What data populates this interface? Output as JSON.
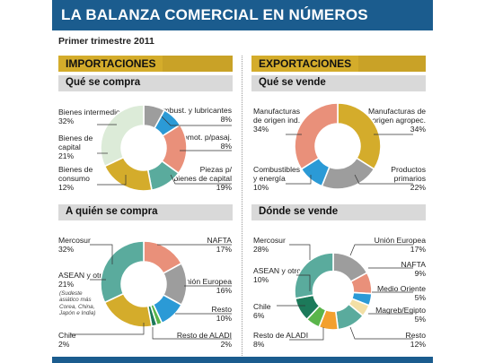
{
  "title": "LA BALANZA COMERCIAL EN NÚMEROS",
  "subtitle": "Primer trimestre 2011",
  "sections": {
    "importaciones": "IMPORTACIONES",
    "exportaciones": "EXPORTACIONES"
  },
  "panels": {
    "p1": "Qué se compra",
    "p2": "Qué se vende",
    "p3": "A quién se compra",
    "p4": "Dónde se vende"
  },
  "colors": {
    "header_blue": "#1b5c8e",
    "gold": "#d4ac2b",
    "grey_bar": "#d9d9d9"
  },
  "labels": {
    "p1": {
      "bienes_intermedios": "Bienes intermedios",
      "bienes_intermedios_v": "32%",
      "bienes_capital_1": "Bienes de",
      "bienes_capital_2": "capital",
      "bienes_capital_v": "21%",
      "bienes_consumo_1": "Bienes de",
      "bienes_consumo_2": "consumo",
      "bienes_consumo_v": "12%",
      "combust": "Combust. y lubricantes",
      "combust_v": "8%",
      "automot": "Automot. p/pasaj.",
      "automot_v": "8%",
      "piezas_1": "Piezas p/",
      "piezas_2": "bienes de capital",
      "piezas_v": "19%"
    },
    "p2": {
      "moi_1": "Manufacturas",
      "moi_2": "de origen ind.",
      "moi_v": "34%",
      "moa_1": "Manufacturas de",
      "moa_2": "origen agropec.",
      "moa_v": "34%",
      "comb_1": "Combustibles",
      "comb_2": "y energía",
      "comb_v": "10%",
      "prod_1": "Productos",
      "prod_2": "primarios",
      "prod_v": "22%"
    },
    "p3": {
      "mercosur": "Mercosur",
      "mercosur_v": "32%",
      "asean": "ASEAN y otros",
      "asean_v": "21%",
      "asean_n1": "(Sudeste",
      "asean_n2": "asiático más",
      "asean_n3": "Corea, China,",
      "asean_n4": "Japón e India)",
      "chile": "Chile",
      "chile_v": "2%",
      "nafta": "NAFTA",
      "nafta_v": "17%",
      "ue": "Unión Europea",
      "ue_v": "16%",
      "resto": "Resto",
      "resto_v": "10%",
      "aladi": "Resto de ALADI",
      "aladi_v": "2%"
    },
    "p4": {
      "mercosur": "Mercosur",
      "mercosur_v": "28%",
      "asean": "ASEAN y otros",
      "asean_v": "10%",
      "chile": "Chile",
      "chile_v": "6%",
      "aladi": "Resto de ALADI",
      "aladi_v": "8%",
      "ue": "Unión Europea",
      "ue_v": "17%",
      "nafta": "NAFTA",
      "nafta_v": "9%",
      "mo": "Medio Oriente",
      "mo_v": "5%",
      "magreb": "Magreb/Egipto",
      "magreb_v": "5%",
      "resto": "Resto",
      "resto_v": "12%"
    }
  },
  "chart_data": [
    {
      "type": "pie",
      "title": "Qué se compra",
      "categories": [
        "Combust. y lubricantes",
        "Automot. p/pasaj.",
        "Piezas p/ bienes de capital",
        "Bienes de consumo",
        "Bienes de capital",
        "Bienes intermedios"
      ],
      "values": [
        8,
        8,
        19,
        12,
        21,
        32
      ],
      "colors": [
        "#9d9d9d",
        "#2b9ad6",
        "#e9907a",
        "#5aab9d",
        "#d4ac2b",
        "#dcebd8"
      ]
    },
    {
      "type": "pie",
      "title": "Qué se vende",
      "categories": [
        "Manufacturas de origen agropec.",
        "Productos primarios",
        "Combustibles y energía",
        "Manufacturas de origen ind."
      ],
      "values": [
        34,
        22,
        10,
        34
      ],
      "colors": [
        "#d4ac2b",
        "#9d9d9d",
        "#2b9ad6",
        "#e9907a"
      ]
    },
    {
      "type": "pie",
      "title": "A quién se compra",
      "categories": [
        "NAFTA",
        "Unión Europea",
        "Resto",
        "Resto de ALADI",
        "Chile",
        "ASEAN y otros",
        "Mercosur"
      ],
      "values": [
        17,
        16,
        10,
        2,
        2,
        21,
        32
      ],
      "colors": [
        "#e9907a",
        "#9d9d9d",
        "#2b9ad6",
        "#5ab54b",
        "#1c7a5a",
        "#d4ac2b",
        "#5aab9d"
      ]
    },
    {
      "type": "pie",
      "title": "Dónde se vende",
      "categories": [
        "Unión Europea",
        "NAFTA",
        "Medio Oriente",
        "Magreb/Egipto",
        "Resto",
        "Resto de ALADI",
        "Chile",
        "ASEAN y otros",
        "Mercosur"
      ],
      "values": [
        17,
        9,
        5,
        5,
        12,
        8,
        6,
        10,
        28
      ],
      "colors": [
        "#9d9d9d",
        "#e9907a",
        "#2b9ad6",
        "#f2dfa5",
        "#5aab9d",
        "#f3a02e",
        "#5ab54b",
        "#1c7a5a",
        "#5aab9d"
      ]
    }
  ]
}
